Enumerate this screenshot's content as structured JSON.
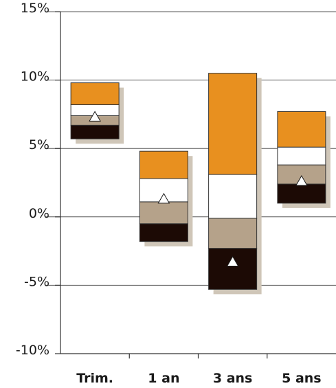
{
  "chart_data": {
    "type": "bar",
    "subtype": "floating stacked range bars (percentile bands) with median marker",
    "categories": [
      "Trim.",
      "1 an",
      "3 ans",
      "5 ans"
    ],
    "y_tick_labels": [
      "-10%",
      "-5%",
      "0%",
      "5%",
      "10%",
      "15%"
    ],
    "ylim": [
      -10,
      15
    ],
    "y_unit": "%",
    "grid": true,
    "bands": [
      {
        "key": "top",
        "color": "#E8901F"
      },
      {
        "key": "upper_mid",
        "color": "#FFFFFF"
      },
      {
        "key": "lower_mid",
        "color": "#B5A28A"
      },
      {
        "key": "bottom",
        "color": "#1C0A05"
      }
    ],
    "shadow_color": "#CFC6B8",
    "marker": {
      "shape": "triangle",
      "fill": "#FFFFFF",
      "stroke": "#1a1a1a"
    },
    "bars": [
      {
        "category": "Trim.",
        "bottom": 5.7,
        "b1": 6.7,
        "b2": 7.4,
        "b3": 8.2,
        "top": 9.8,
        "marker": 7.3
      },
      {
        "category": "1 an",
        "bottom": -1.8,
        "b1": -0.5,
        "b2": 1.1,
        "b3": 2.8,
        "top": 4.8,
        "marker": 1.3
      },
      {
        "category": "3 ans",
        "bottom": -5.3,
        "b1": -2.3,
        "b2": -0.1,
        "b3": 3.1,
        "top": 10.5,
        "marker": -3.3
      },
      {
        "category": "5 ans",
        "bottom": 1.0,
        "b1": 2.4,
        "b2": 3.8,
        "b3": 5.1,
        "top": 7.7,
        "marker": 2.6
      }
    ]
  }
}
